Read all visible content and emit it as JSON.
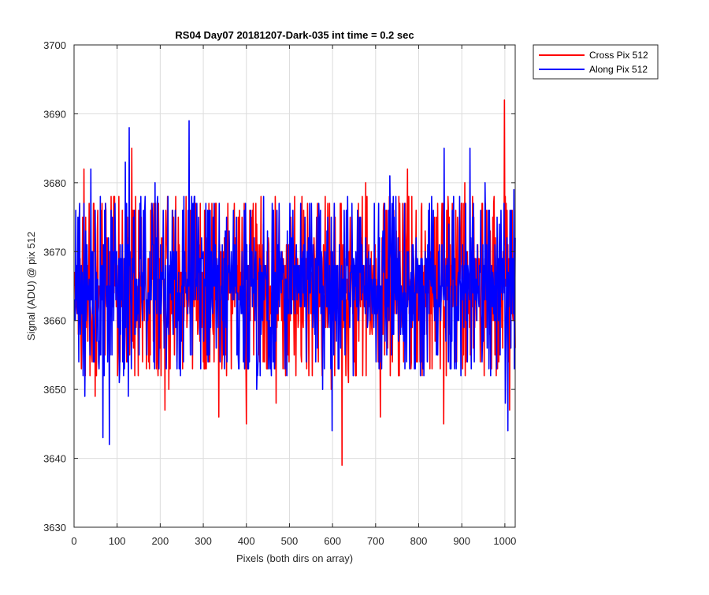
{
  "chart_data": {
    "type": "line",
    "title": "RS04 Day07 20181207-Dark-035 int time = 0.2 sec",
    "xlabel": "Pixels (both dirs on array)",
    "ylabel": "Signal (ADU) @ pix 512",
    "xlim": [
      0,
      1024
    ],
    "ylim": [
      3630,
      3700
    ],
    "xticks": [
      0,
      100,
      200,
      300,
      400,
      500,
      600,
      700,
      800,
      900,
      1000
    ],
    "yticks": [
      3630,
      3640,
      3650,
      3660,
      3670,
      3680,
      3690,
      3700
    ],
    "grid": true,
    "legend_position": "outside-top-right",
    "series_summary": {
      "n_points": 1024,
      "mean_level": 3665,
      "typical_range": [
        3652,
        3678
      ]
    },
    "series": [
      {
        "name": "Cross Pix 512",
        "color": "#ff0000",
        "seed": 17,
        "extremes": [
          [
            16,
            3653
          ],
          [
            22,
            3682
          ],
          [
            48,
            3649
          ],
          [
            85,
            3678
          ],
          [
            104,
            3655
          ],
          [
            133,
            3685
          ],
          [
            158,
            3654
          ],
          [
            210,
            3647
          ],
          [
            219,
            3650
          ],
          [
            252,
            3676
          ],
          [
            291,
            3657
          ],
          [
            335,
            3646
          ],
          [
            399,
            3645
          ],
          [
            421,
            3677
          ],
          [
            468,
            3648
          ],
          [
            528,
            3678
          ],
          [
            575,
            3652
          ],
          [
            596,
            3650
          ],
          [
            621,
            3639
          ],
          [
            636,
            3651
          ],
          [
            676,
            3680
          ],
          [
            710,
            3646
          ],
          [
            773,
            3682
          ],
          [
            857,
            3645
          ],
          [
            876,
            3670
          ],
          [
            906,
            3680
          ],
          [
            974,
            3678
          ],
          [
            998,
            3692
          ],
          [
            1010,
            3647
          ],
          [
            1024,
            3656
          ]
        ]
      },
      {
        "name": "Along Pix 512",
        "color": "#0000ff",
        "seed": 91,
        "extremes": [
          [
            2,
            3660
          ],
          [
            11,
            3675
          ],
          [
            24,
            3649
          ],
          [
            38,
            3682
          ],
          [
            52,
            3657
          ],
          [
            66,
            3643
          ],
          [
            81,
            3642
          ],
          [
            104,
            3651
          ],
          [
            118,
            3683
          ],
          [
            125,
            3649
          ],
          [
            127,
            3688
          ],
          [
            187,
            3680
          ],
          [
            244,
            3660
          ],
          [
            266,
            3689
          ],
          [
            269,
            3655
          ],
          [
            300,
            3657
          ],
          [
            354,
            3654
          ],
          [
            406,
            3654
          ],
          [
            423,
            3650
          ],
          [
            576,
            3650
          ],
          [
            598,
            3644
          ],
          [
            616,
            3664
          ],
          [
            732,
            3681
          ],
          [
            764,
            3657
          ],
          [
            858,
            3685
          ],
          [
            897,
            3652
          ],
          [
            918,
            3685
          ],
          [
            953,
            3680
          ],
          [
            1000,
            3648
          ],
          [
            1006,
            3644
          ],
          [
            1013,
            3656
          ],
          [
            1020,
            3679
          ]
        ]
      }
    ]
  }
}
